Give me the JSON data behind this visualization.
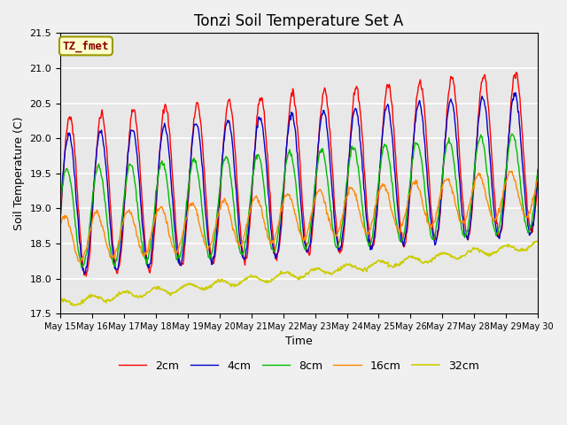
{
  "title": "Tonzi Soil Temperature Set A",
  "xlabel": "Time",
  "ylabel": "Soil Temperature (C)",
  "annotation": "TZ_fmet",
  "annotation_color": "#8B0000",
  "annotation_bg": "#FFFFCC",
  "annotation_edge": "#999900",
  "ylim": [
    17.5,
    21.5
  ],
  "yticks": [
    17.5,
    18.0,
    18.5,
    19.0,
    19.5,
    20.0,
    20.5,
    21.0,
    21.5
  ],
  "xtick_labels": [
    "May 15",
    "May 16",
    "May 17",
    "May 18",
    "May 19",
    "May 20",
    "May 21",
    "May 22",
    "May 23",
    "May 24",
    "May 25",
    "May 26",
    "May 27",
    "May 28",
    "May 29",
    "May 30"
  ],
  "series_colors": {
    "2cm": "#FF0000",
    "4cm": "#0000CC",
    "8cm": "#00BB00",
    "16cm": "#FF8800",
    "32cm": "#CCCC00"
  },
  "legend_labels": [
    "2cm",
    "4cm",
    "8cm",
    "16cm",
    "32cm"
  ],
  "plot_bg": "#E8E8E8",
  "fig_bg": "#F0F0F0",
  "grid_color": "#FFFFFF",
  "title_fontsize": 12,
  "n_days": 15,
  "pts_per_day": 48
}
